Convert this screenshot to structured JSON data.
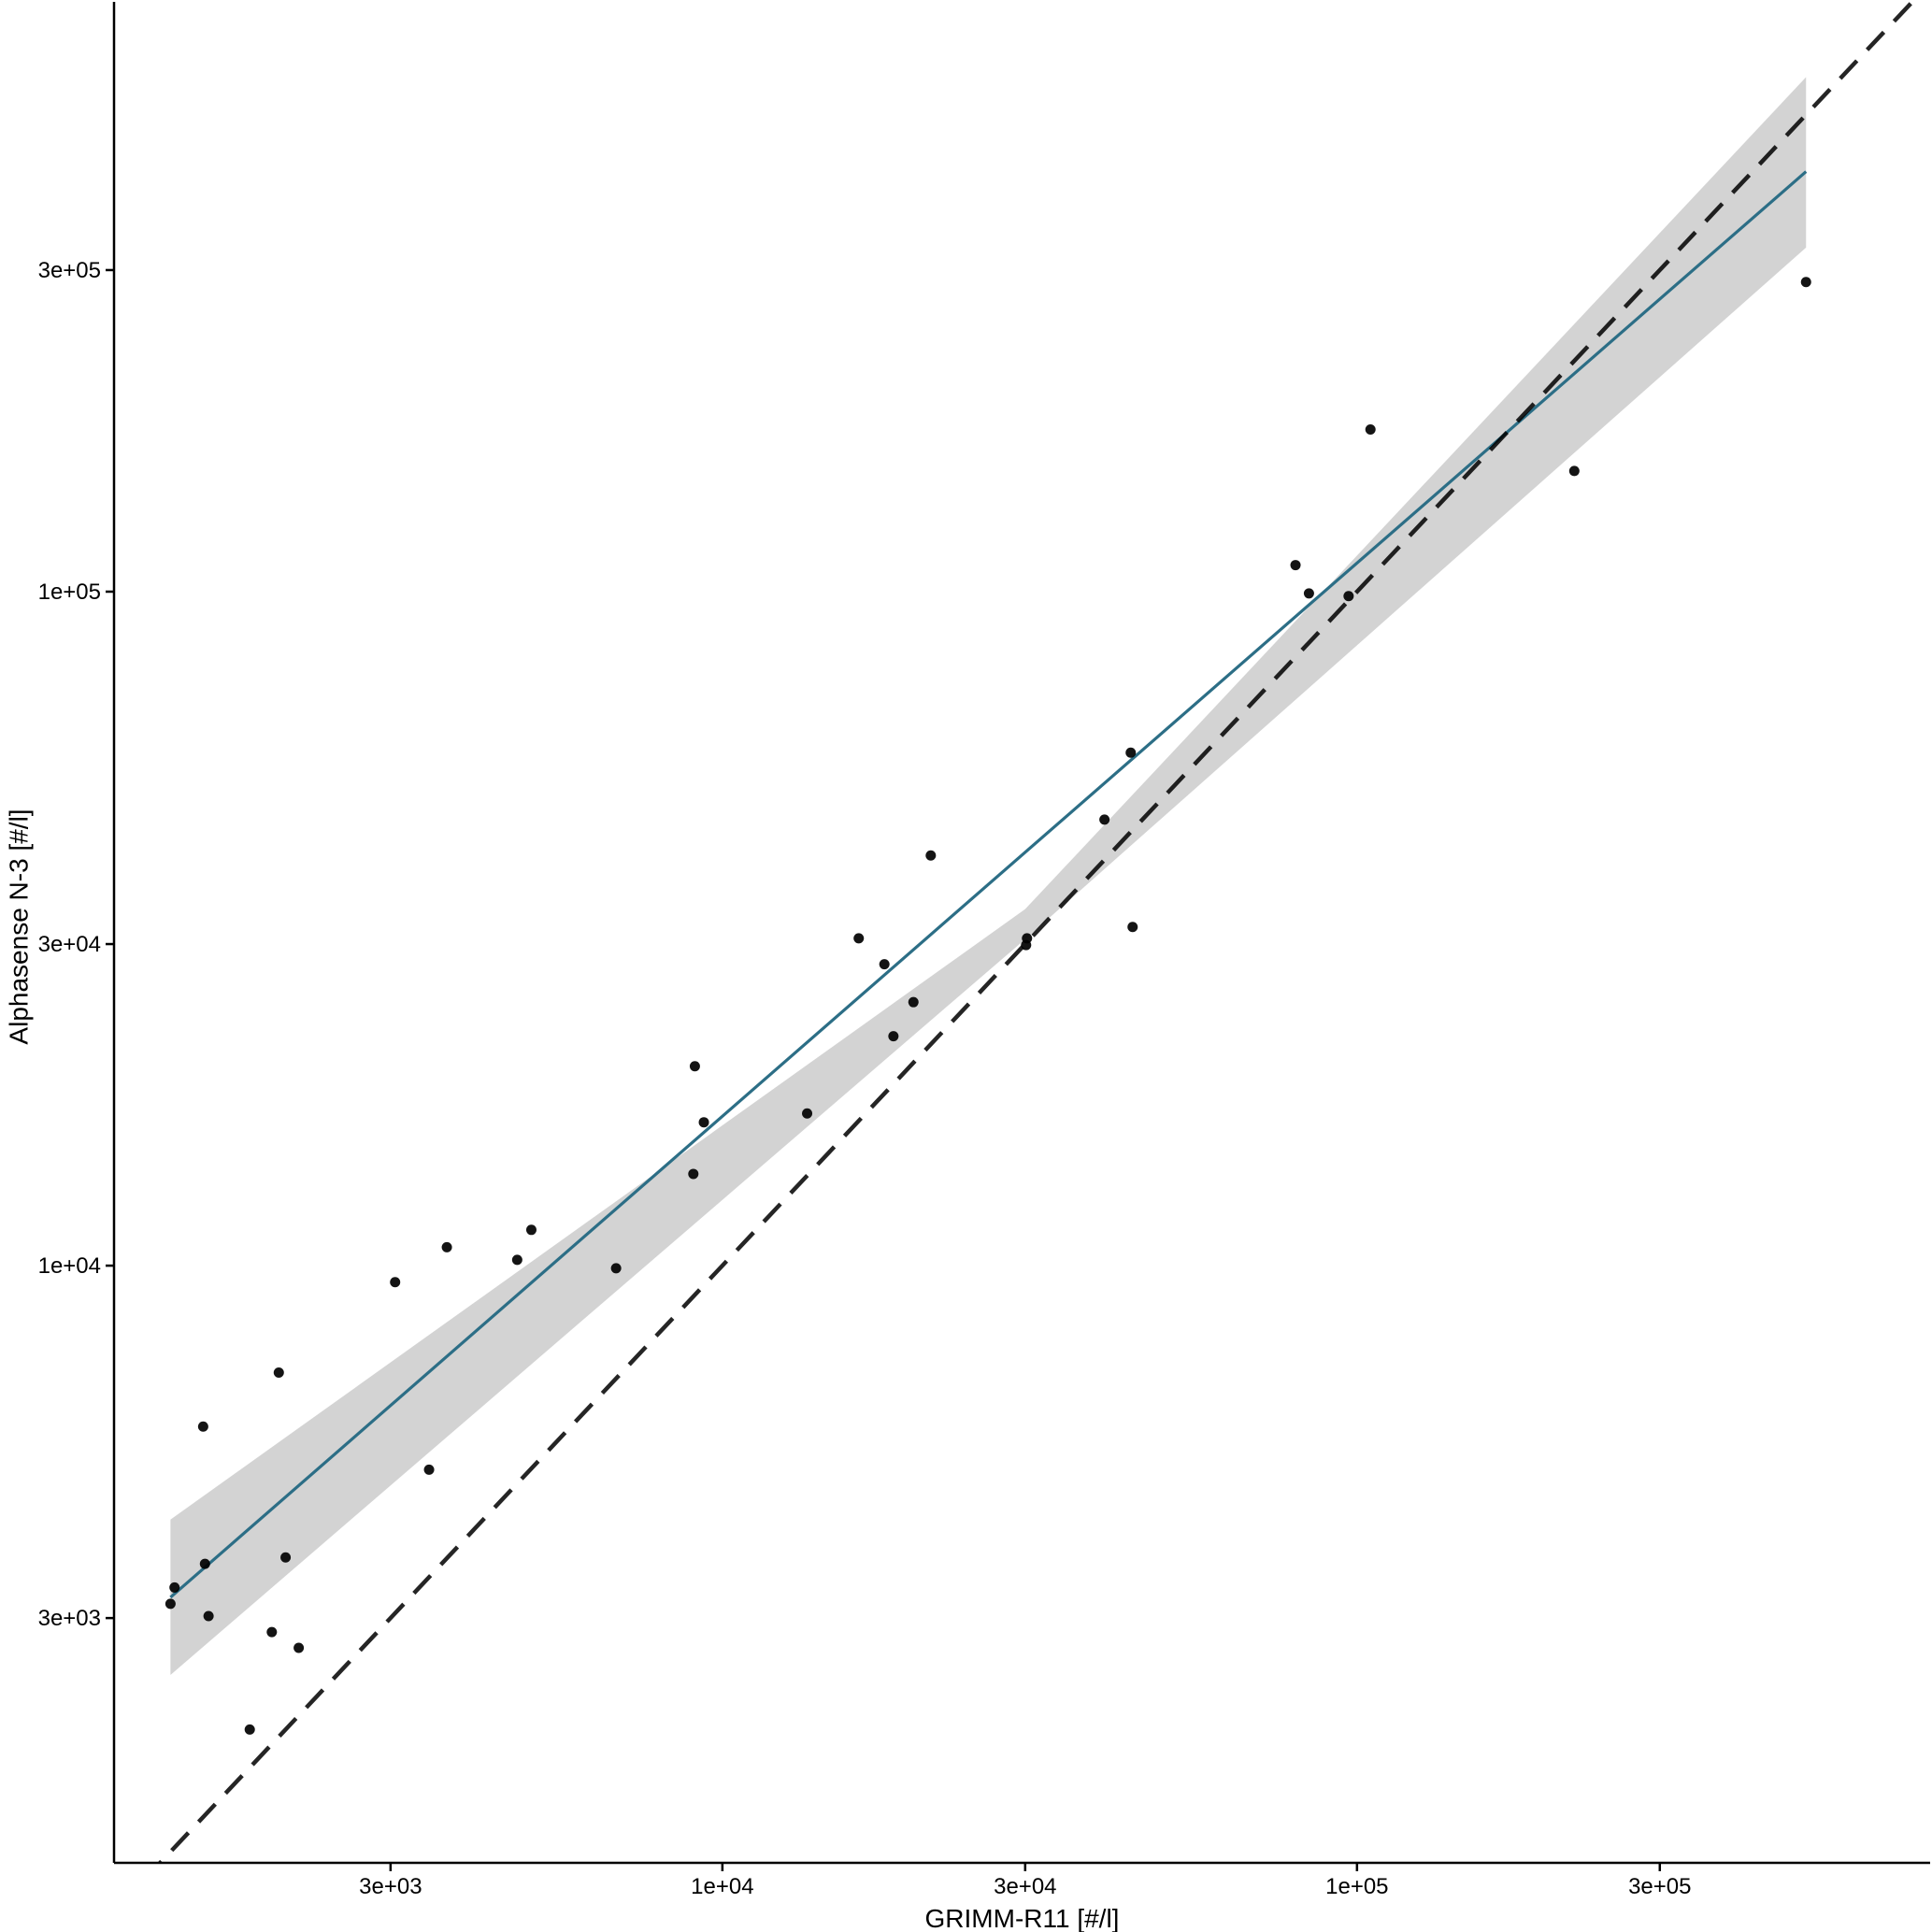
{
  "chart_data": {
    "type": "scatter",
    "title": "",
    "xlabel": "GRIMM-R11 [#/l]",
    "ylabel": "Alphasense N-3 [#/l]",
    "xscale": "log10",
    "yscale": "log10",
    "xlim": [
      1100,
      800000
    ],
    "ylim": [
      1300,
      750000
    ],
    "x_ticks": [
      {
        "value": 3000,
        "label": "3e+03"
      },
      {
        "value": 10000,
        "label": "1e+04"
      },
      {
        "value": 30000,
        "label": "3e+04"
      },
      {
        "value": 100000,
        "label": "1e+05"
      },
      {
        "value": 300000,
        "label": "3e+05"
      }
    ],
    "y_ticks": [
      {
        "value": 3000,
        "label": "3e+03"
      },
      {
        "value": 10000,
        "label": "1e+04"
      },
      {
        "value": 30000,
        "label": "3e+04"
      },
      {
        "value": 100000,
        "label": "1e+05"
      },
      {
        "value": 300000,
        "label": "3e+05"
      }
    ],
    "grid": false,
    "legend": "none",
    "series": [
      {
        "kind": "points",
        "color": "#000000",
        "points": [
          [
            1350,
            3150
          ],
          [
            1370,
            3330
          ],
          [
            1530,
            3610
          ],
          [
            1520,
            5770
          ],
          [
            1550,
            3020
          ],
          [
            1800,
            2050
          ],
          [
            1950,
            2860
          ],
          [
            2000,
            6940
          ],
          [
            2050,
            3690
          ],
          [
            2150,
            2710
          ],
          [
            3050,
            9450
          ],
          [
            3450,
            4980
          ],
          [
            3680,
            10650
          ],
          [
            4750,
            10200
          ],
          [
            5000,
            11300
          ],
          [
            6800,
            9910
          ],
          [
            9000,
            13680
          ],
          [
            9050,
            19760
          ],
          [
            9350,
            16320
          ],
          [
            13600,
            16820
          ],
          [
            16400,
            30600
          ],
          [
            18000,
            28000
          ],
          [
            18600,
            21900
          ],
          [
            20000,
            24600
          ],
          [
            21300,
            40600
          ],
          [
            30200,
            30600
          ],
          [
            30100,
            29900
          ],
          [
            40000,
            45900
          ],
          [
            44300,
            31800
          ],
          [
            44000,
            57700
          ],
          [
            80000,
            109500
          ],
          [
            84000,
            99400
          ],
          [
            97000,
            98500
          ],
          [
            105000,
            174000
          ],
          [
            220000,
            151000
          ],
          [
            510000,
            288000
          ]
        ]
      },
      {
        "kind": "regression",
        "color": "#2c6e86",
        "band_color": "#d3d3d3",
        "line": [
          [
            1350,
            3220
          ],
          [
            510000,
            420000
          ]
        ],
        "band_lower": [
          [
            1350,
            2470
          ],
          [
            30000,
            30500
          ],
          [
            510000,
            324000
          ]
        ],
        "band_upper": [
          [
            1350,
            4200
          ],
          [
            30000,
            33800
          ],
          [
            510000,
            580000
          ]
        ]
      },
      {
        "kind": "identity",
        "color": "#000000",
        "dash": "dashed",
        "line": [
          [
            1230,
            1230
          ],
          [
            800000,
            800000
          ]
        ]
      }
    ]
  }
}
